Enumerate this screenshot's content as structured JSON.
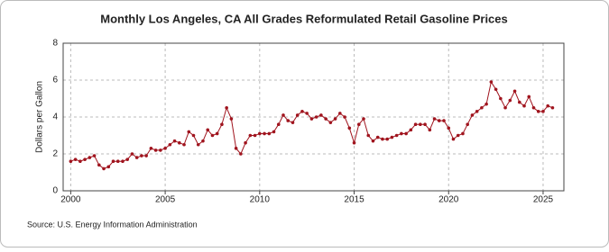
{
  "chart_data": {
    "type": "line",
    "title": "Monthly Los Angeles, CA All Grades Reformulated Retail Gasoline Prices",
    "y_label": "Dollars per Gallon",
    "source": "Source: U.S. Energy Information Administration",
    "x": [
      2000,
      2000.25,
      2000.5,
      2000.75,
      2001,
      2001.25,
      2001.5,
      2001.75,
      2002,
      2002.25,
      2002.5,
      2002.75,
      2003,
      2003.25,
      2003.5,
      2003.75,
      2004,
      2004.25,
      2004.5,
      2004.75,
      2005,
      2005.25,
      2005.5,
      2005.75,
      2006,
      2006.25,
      2006.5,
      2006.75,
      2007,
      2007.25,
      2007.5,
      2007.75,
      2008,
      2008.25,
      2008.5,
      2008.75,
      2009,
      2009.25,
      2009.5,
      2009.75,
      2010,
      2010.25,
      2010.5,
      2010.75,
      2011,
      2011.25,
      2011.5,
      2011.75,
      2012,
      2012.25,
      2012.5,
      2012.75,
      2013,
      2013.25,
      2013.5,
      2013.75,
      2014,
      2014.25,
      2014.5,
      2014.75,
      2015,
      2015.25,
      2015.5,
      2015.75,
      2016,
      2016.25,
      2016.5,
      2016.75,
      2017,
      2017.25,
      2017.5,
      2017.75,
      2018,
      2018.25,
      2018.5,
      2018.75,
      2019,
      2019.25,
      2019.5,
      2019.75,
      2020,
      2020.25,
      2020.5,
      2020.75,
      2021,
      2021.25,
      2021.5,
      2021.75,
      2022,
      2022.25,
      2022.5,
      2022.75,
      2023,
      2023.25,
      2023.5,
      2023.75,
      2024,
      2024.25,
      2024.5,
      2024.75,
      2025,
      2025.25,
      2025.5
    ],
    "series": [
      {
        "name": "Los Angeles, CA All Grades Reformulated Retail Gasoline Prices",
        "color": "#a0141e",
        "values": [
          1.6,
          1.7,
          1.6,
          1.7,
          1.8,
          1.9,
          1.4,
          1.2,
          1.3,
          1.6,
          1.6,
          1.6,
          1.7,
          2.0,
          1.8,
          1.9,
          1.9,
          2.3,
          2.2,
          2.2,
          2.3,
          2.5,
          2.7,
          2.6,
          2.5,
          3.2,
          3.0,
          2.5,
          2.7,
          3.3,
          3.0,
          3.1,
          3.6,
          4.5,
          3.9,
          2.3,
          2.0,
          2.6,
          3.0,
          3.0,
          3.1,
          3.1,
          3.1,
          3.2,
          3.6,
          4.1,
          3.8,
          3.7,
          4.1,
          4.3,
          4.2,
          3.9,
          4.0,
          4.1,
          3.9,
          3.7,
          3.9,
          4.2,
          4.0,
          3.4,
          2.6,
          3.6,
          3.9,
          3.0,
          2.7,
          2.9,
          2.8,
          2.8,
          2.9,
          3.0,
          3.1,
          3.1,
          3.3,
          3.6,
          3.6,
          3.6,
          3.3,
          3.9,
          3.8,
          3.8,
          3.4,
          2.8,
          3.0,
          3.1,
          3.6,
          4.1,
          4.3,
          4.5,
          4.7,
          5.9,
          5.5,
          5.0,
          4.5,
          4.9,
          5.4,
          4.8,
          4.6,
          5.1,
          4.5,
          4.3,
          4.3,
          4.6,
          4.5
        ]
      }
    ],
    "xlim": [
      1999.6,
      2026.1
    ],
    "ylim": [
      0,
      8
    ],
    "xticks": [
      2000,
      2005,
      2010,
      2015,
      2020,
      2025
    ],
    "yticks": [
      0,
      2,
      4,
      6,
      8
    ],
    "grid": true
  }
}
